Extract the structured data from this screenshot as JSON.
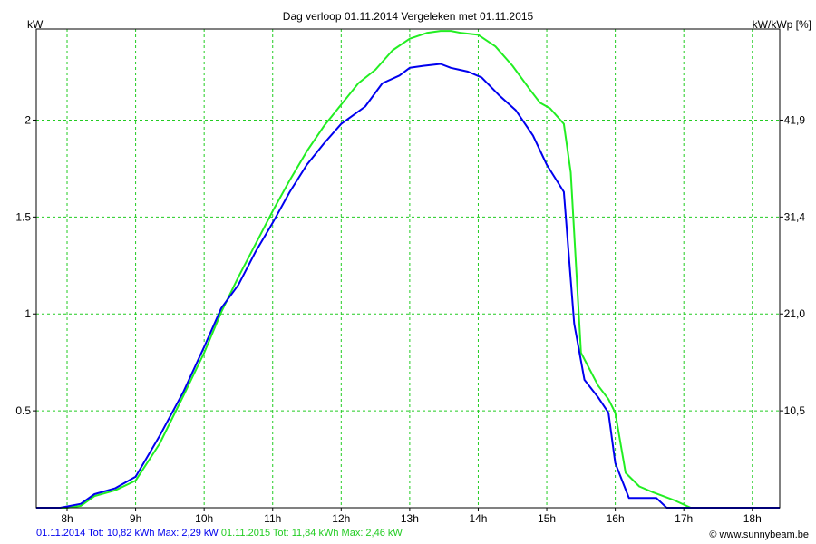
{
  "chart_data": {
    "type": "line",
    "title": "Dag  verloop 01.11.2014   Vergeleken met 01.11.2015",
    "ylabel_left": "kW",
    "ylabel_right": "kW/kWp [%]",
    "x_ticks": [
      "8h",
      "9h",
      "10h",
      "11h",
      "12h",
      "13h",
      "14h",
      "15h",
      "16h",
      "17h",
      "18h"
    ],
    "x_tick_values": [
      8,
      9,
      10,
      11,
      12,
      13,
      14,
      15,
      16,
      17,
      18
    ],
    "xlim": [
      7.55,
      18.4
    ],
    "y_ticks_left": [
      "0.5",
      "1",
      "1.5",
      "2"
    ],
    "y_tick_values_left": [
      0.5,
      1,
      1.5,
      2
    ],
    "y_ticks_right": [
      "10,5",
      "21,0",
      "31,4",
      "41,9"
    ],
    "ylim": [
      0,
      2.47
    ],
    "grid": true,
    "series": [
      {
        "name": "01.11.2014",
        "color": "#0000ee",
        "x": [
          7.55,
          7.9,
          8.2,
          8.4,
          8.7,
          9.0,
          9.35,
          9.7,
          10.0,
          10.25,
          10.5,
          10.75,
          11.0,
          11.25,
          11.5,
          11.75,
          12.0,
          12.35,
          12.6,
          12.85,
          13.0,
          13.2,
          13.45,
          13.6,
          13.85,
          14.05,
          14.3,
          14.55,
          14.8,
          15.0,
          15.25,
          15.4,
          15.55,
          15.75,
          15.9,
          16.0,
          16.2,
          16.6,
          16.75,
          17.5,
          18.4
        ],
        "y": [
          0,
          0,
          0.02,
          0.07,
          0.1,
          0.16,
          0.37,
          0.6,
          0.83,
          1.03,
          1.15,
          1.32,
          1.47,
          1.63,
          1.77,
          1.88,
          1.98,
          2.07,
          2.19,
          2.23,
          2.27,
          2.28,
          2.29,
          2.27,
          2.25,
          2.22,
          2.13,
          2.05,
          1.92,
          1.77,
          1.63,
          0.95,
          0.66,
          0.57,
          0.49,
          0.23,
          0.05,
          0.05,
          0,
          0,
          0
        ]
      },
      {
        "name": "01.11.2015",
        "color": "#22ee22",
        "x": [
          7.55,
          8.0,
          8.2,
          8.4,
          8.7,
          9.0,
          9.35,
          9.7,
          10.0,
          10.25,
          10.5,
          10.75,
          11.0,
          11.25,
          11.5,
          11.75,
          12.0,
          12.25,
          12.5,
          12.75,
          13.0,
          13.25,
          13.45,
          13.6,
          13.75,
          14.0,
          14.25,
          14.5,
          14.75,
          14.9,
          15.05,
          15.25,
          15.35,
          15.5,
          15.75,
          15.9,
          16.0,
          16.15,
          16.35,
          16.55,
          16.85,
          17.1,
          17.5,
          18.4
        ],
        "y": [
          0,
          0,
          0.01,
          0.06,
          0.09,
          0.14,
          0.33,
          0.58,
          0.8,
          1.01,
          1.19,
          1.36,
          1.53,
          1.69,
          1.84,
          1.97,
          2.08,
          2.19,
          2.26,
          2.36,
          2.42,
          2.45,
          2.46,
          2.46,
          2.45,
          2.44,
          2.38,
          2.28,
          2.16,
          2.09,
          2.06,
          1.98,
          1.73,
          0.8,
          0.63,
          0.56,
          0.49,
          0.18,
          0.11,
          0.08,
          0.04,
          0,
          0,
          0
        ]
      }
    ]
  },
  "footer": {
    "s1": "01.11.2014 Tot: 10,82 kWh Max: 2,29 kW",
    "s2": "01.11.2015 Tot: 11,84 kWh Max: 2,46 kW",
    "credit": "© www.sunnybeam.be"
  }
}
